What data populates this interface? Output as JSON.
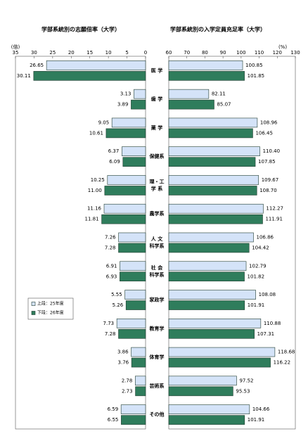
{
  "chart_data": [
    {
      "type": "bar",
      "orientation": "horizontal",
      "title": "学部系統別の志願倍率（大学）",
      "unit": "(倍)",
      "categories": [
        "医 学",
        "歯 学",
        "薬 学",
        "保健系",
        "理・工\n学 系",
        "農学系",
        "人 文\n科学系",
        "社 会\n科学系",
        "家政学",
        "教育学",
        "体育学",
        "芸術系",
        "その他"
      ],
      "xlim": [
        35,
        0
      ],
      "xticks": [
        35,
        30,
        25,
        20,
        15,
        10,
        5,
        0
      ],
      "legend": "lower left",
      "series": [
        {
          "name": "上段：25年度",
          "color": "#d4e3f8",
          "values": [
            26.65,
            3.13,
            9.05,
            6.37,
            10.25,
            11.16,
            7.26,
            6.91,
            5.55,
            7.73,
            3.86,
            2.78,
            6.59
          ],
          "value_labels": [
            "26.65",
            "3.13",
            "9.05",
            "6.37",
            "10.25",
            "11.16",
            "7.26",
            "6.91",
            "5.55",
            "7.73",
            "3.86",
            "2.78",
            "6.59"
          ]
        },
        {
          "name": "下段：26年度",
          "color": "#2f7d5c",
          "values": [
            30.11,
            3.89,
            10.61,
            6.09,
            11.0,
            11.81,
            7.28,
            6.93,
            5.26,
            7.28,
            3.76,
            2.73,
            6.55
          ],
          "value_labels": [
            "30.11",
            "3.89",
            "10.61",
            "6.09",
            "11.00",
            "11.81",
            "7.28",
            "6.93",
            "5.26",
            "7.28",
            "3.76",
            "2.73",
            "6.55"
          ]
        }
      ]
    },
    {
      "type": "bar",
      "orientation": "horizontal",
      "title": "学部系統別の入学定員充足率（大学）",
      "unit": "(%)",
      "xlim": [
        60,
        130
      ],
      "xticks": [
        60,
        70,
        80,
        90,
        100,
        110,
        120,
        130
      ],
      "series": [
        {
          "name": "上段：25年度",
          "color": "#d4e3f8",
          "values": [
            100.85,
            82.11,
            108.96,
            110.4,
            109.67,
            112.27,
            106.86,
            102.79,
            108.08,
            110.88,
            118.68,
            97.52,
            104.66
          ],
          "value_labels": [
            "100.85",
            "82.11",
            "108.96",
            "110.40",
            "109.67",
            "112.27",
            "106.86",
            "102.79",
            "108.08",
            "110.88",
            "118.68",
            "97.52",
            "104.66"
          ]
        },
        {
          "name": "下段：26年度",
          "color": "#2f7d5c",
          "values": [
            101.85,
            85.07,
            106.45,
            107.85,
            108.7,
            111.91,
            104.42,
            101.82,
            101.91,
            107.31,
            116.22,
            95.53,
            101.91
          ],
          "value_labels": [
            "101.85",
            "85.07",
            "106.45",
            "107.85",
            "108.70",
            "111.91",
            "104.42",
            "101.82",
            "101.91",
            "107.31",
            "116.22",
            "95.53",
            "101.91"
          ]
        }
      ]
    }
  ]
}
